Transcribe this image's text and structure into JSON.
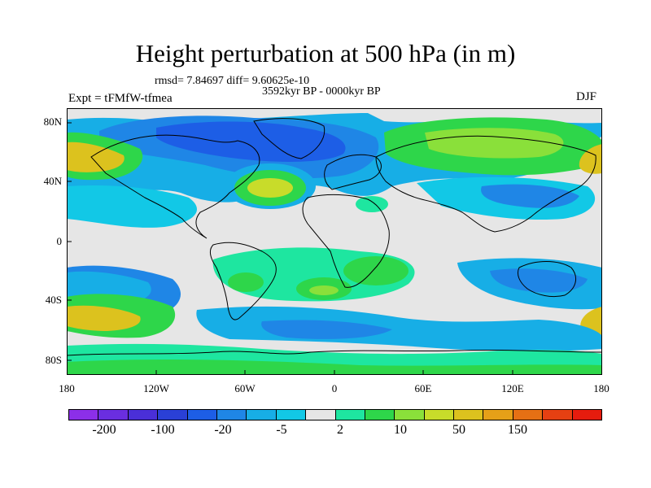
{
  "title": "Height perturbation at 500 hPa (in m)",
  "stats": "rmsd= 7.84697 diff= 9.60625e-10",
  "period": "3592kyr BP - 0000kyr BP",
  "experiment": "Expt = tFMfW-tfmea",
  "season": "DJF",
  "map": {
    "projection": "cylindrical equidistant",
    "lat_labels": [
      "80N",
      "40N",
      "0",
      "40S",
      "80S"
    ],
    "lon_labels": [
      "180",
      "120W",
      "60W",
      "0",
      "60E",
      "120E",
      "180"
    ],
    "colors": {
      "background": "#e6e6e6",
      "coast": "#000000"
    }
  },
  "colorbar": {
    "colors": [
      "#8c2fe8",
      "#6a2ee0",
      "#4a2fd8",
      "#2a40d6",
      "#1d5ee6",
      "#1f86e6",
      "#17aee6",
      "#12c8e6",
      "#e6e6e6",
      "#1ee6a0",
      "#2ed64a",
      "#8ae03a",
      "#c8dc2a",
      "#dcc21e",
      "#e6a018",
      "#e67014",
      "#e64012",
      "#e61c0e"
    ],
    "labels": [
      "-200",
      "-100",
      "-20",
      "-5",
      "2",
      "10",
      "50",
      "150"
    ]
  }
}
